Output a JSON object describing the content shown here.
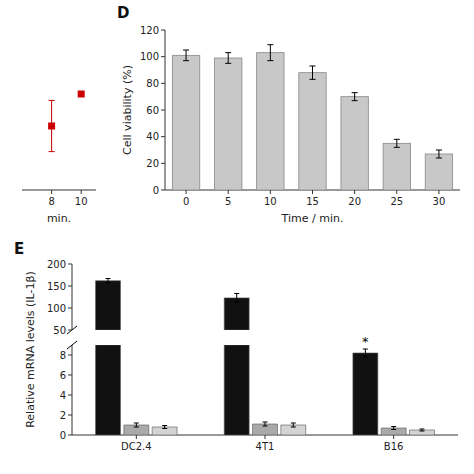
{
  "chart_data": [
    {
      "type": "scatter",
      "xlabel": "min.",
      "x": [
        8,
        10
      ],
      "values": [
        105,
        110
      ],
      "errors": [
        4,
        null
      ],
      "color": "#cc0000",
      "marker": "square",
      "xlim": [
        6,
        11
      ],
      "xticks": [
        8,
        10
      ],
      "ylim": [
        95,
        120
      ],
      "yticks": [],
      "tick_labels": "x"
    },
    {
      "type": "bar",
      "title": "D",
      "xlabel": "Time / min.",
      "ylabel": "Cell viability (%)",
      "categories": [
        "0",
        "5",
        "10",
        "15",
        "20",
        "25",
        "30"
      ],
      "values": [
        101,
        99,
        103,
        88,
        70,
        35,
        27
      ],
      "errors": [
        4,
        4,
        6,
        5,
        3,
        3,
        3
      ],
      "color": "#c8c8c8",
      "ylim": [
        0,
        120
      ],
      "yticks": [
        0,
        20,
        40,
        60,
        80,
        100,
        120
      ]
    },
    {
      "type": "bar",
      "title": "E",
      "ylabel": "Relative mRNA levels (IL-1β)",
      "categories": [
        "DC2.4",
        "4T1",
        "B16"
      ],
      "series": [
        {
          "color": "#111111",
          "values": [
            162,
            123,
            8.2
          ],
          "errors": [
            5,
            10,
            0.4
          ]
        },
        {
          "color": "#aaaaaa",
          "values": [
            1.0,
            1.1,
            0.7
          ],
          "errors": [
            0.2,
            0.2,
            0.15
          ]
        },
        {
          "color": "#d3d3d3",
          "values": [
            0.8,
            1.0,
            0.5
          ],
          "errors": [
            0.15,
            0.2,
            0.1
          ]
        }
      ],
      "ylim": [
        0,
        200
      ],
      "ybreak": [
        9,
        50
      ],
      "yticks": [
        0,
        2,
        4,
        6,
        8,
        50,
        100,
        150,
        200
      ],
      "annotations": [
        {
          "text": "*",
          "x": "B16"
        }
      ]
    }
  ]
}
